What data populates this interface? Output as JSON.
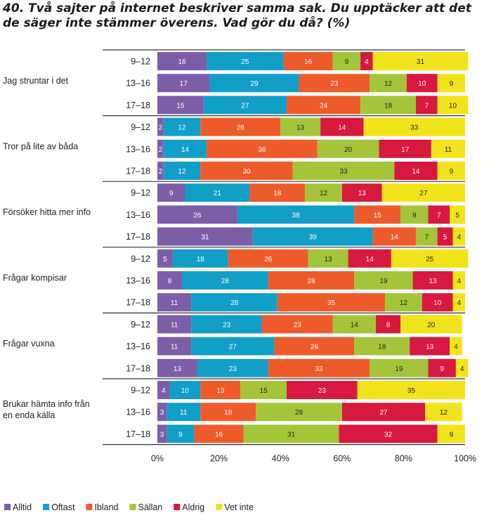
{
  "chart_data": {
    "type": "bar",
    "orientation": "horizontal",
    "stacked": true,
    "title": "40. Två sajter på internet beskriver samma sak. Du upptäcker att det de säger inte stämmer överens. Vad gör du då? (%)",
    "xlabel": "",
    "ylabel": "",
    "xlim": [
      0,
      100
    ],
    "x_ticks": [
      "0%",
      "20%",
      "40%",
      "60%",
      "80%",
      "100%"
    ],
    "grid": false,
    "legend_position": "bottom",
    "series": [
      {
        "name": "Alltid",
        "color": "#7b5ea7"
      },
      {
        "name": "Oftast",
        "color": "#129fc7"
      },
      {
        "name": "Ibland",
        "color": "#ee5b2b"
      },
      {
        "name": "Sällan",
        "color": "#a4c53a"
      },
      {
        "name": "Aldrig",
        "color": "#d7193f"
      },
      {
        "name": "Vet inte",
        "color": "#f2e41a"
      }
    ],
    "groups": [
      {
        "label": "Jag struntar i det",
        "rows": [
          {
            "age": "9–12",
            "values": [
              16,
              25,
              16,
              9,
              4,
              31
            ]
          },
          {
            "age": "13–16",
            "values": [
              17,
              29,
              23,
              12,
              10,
              9
            ]
          },
          {
            "age": "17–18",
            "values": [
              15,
              27,
              24,
              18,
              7,
              10
            ]
          }
        ]
      },
      {
        "label": "Tror på lite av båda",
        "rows": [
          {
            "age": "9–12",
            "values": [
              2,
              12,
              26,
              13,
              14,
              33
            ]
          },
          {
            "age": "13–16",
            "values": [
              2,
              14,
              36,
              20,
              17,
              11
            ]
          },
          {
            "age": "17–18",
            "values": [
              2,
              12,
              30,
              33,
              14,
              9
            ]
          }
        ]
      },
      {
        "label": "Försöker hitta mer info",
        "rows": [
          {
            "age": "9–12",
            "values": [
              9,
              21,
              18,
              12,
              13,
              27
            ]
          },
          {
            "age": "13–16",
            "values": [
              26,
              38,
              15,
              9,
              7,
              5
            ]
          },
          {
            "age": "17–18",
            "values": [
              31,
              39,
              14,
              7,
              5,
              4
            ]
          }
        ]
      },
      {
        "label": "Frågar kompisar",
        "rows": [
          {
            "age": "9–12",
            "values": [
              5,
              18,
              26,
              13,
              14,
              25
            ]
          },
          {
            "age": "13–16",
            "values": [
              8,
              28,
              28,
              19,
              13,
              4
            ]
          },
          {
            "age": "17–18",
            "values": [
              11,
              28,
              35,
              12,
              10,
              4
            ]
          }
        ]
      },
      {
        "label": "Frågar vuxna",
        "rows": [
          {
            "age": "9–12",
            "values": [
              11,
              23,
              23,
              14,
              8,
              20
            ]
          },
          {
            "age": "13–16",
            "values": [
              11,
              27,
              26,
              18,
              13,
              4
            ]
          },
          {
            "age": "17–18",
            "values": [
              13,
              23,
              33,
              19,
              9,
              4
            ]
          }
        ]
      },
      {
        "label": "Brukar hämta info från en enda källa",
        "label_lines": [
          "Brukar hämta info från",
          "en enda källa"
        ],
        "rows": [
          {
            "age": "9–12",
            "values": [
              4,
              10,
              13,
              15,
              23,
              35
            ]
          },
          {
            "age": "13–16",
            "values": [
              3,
              11,
              18,
              28,
              27,
              12
            ]
          },
          {
            "age": "17–18",
            "values": [
              3,
              9,
              16,
              31,
              32,
              9
            ]
          }
        ]
      }
    ]
  }
}
